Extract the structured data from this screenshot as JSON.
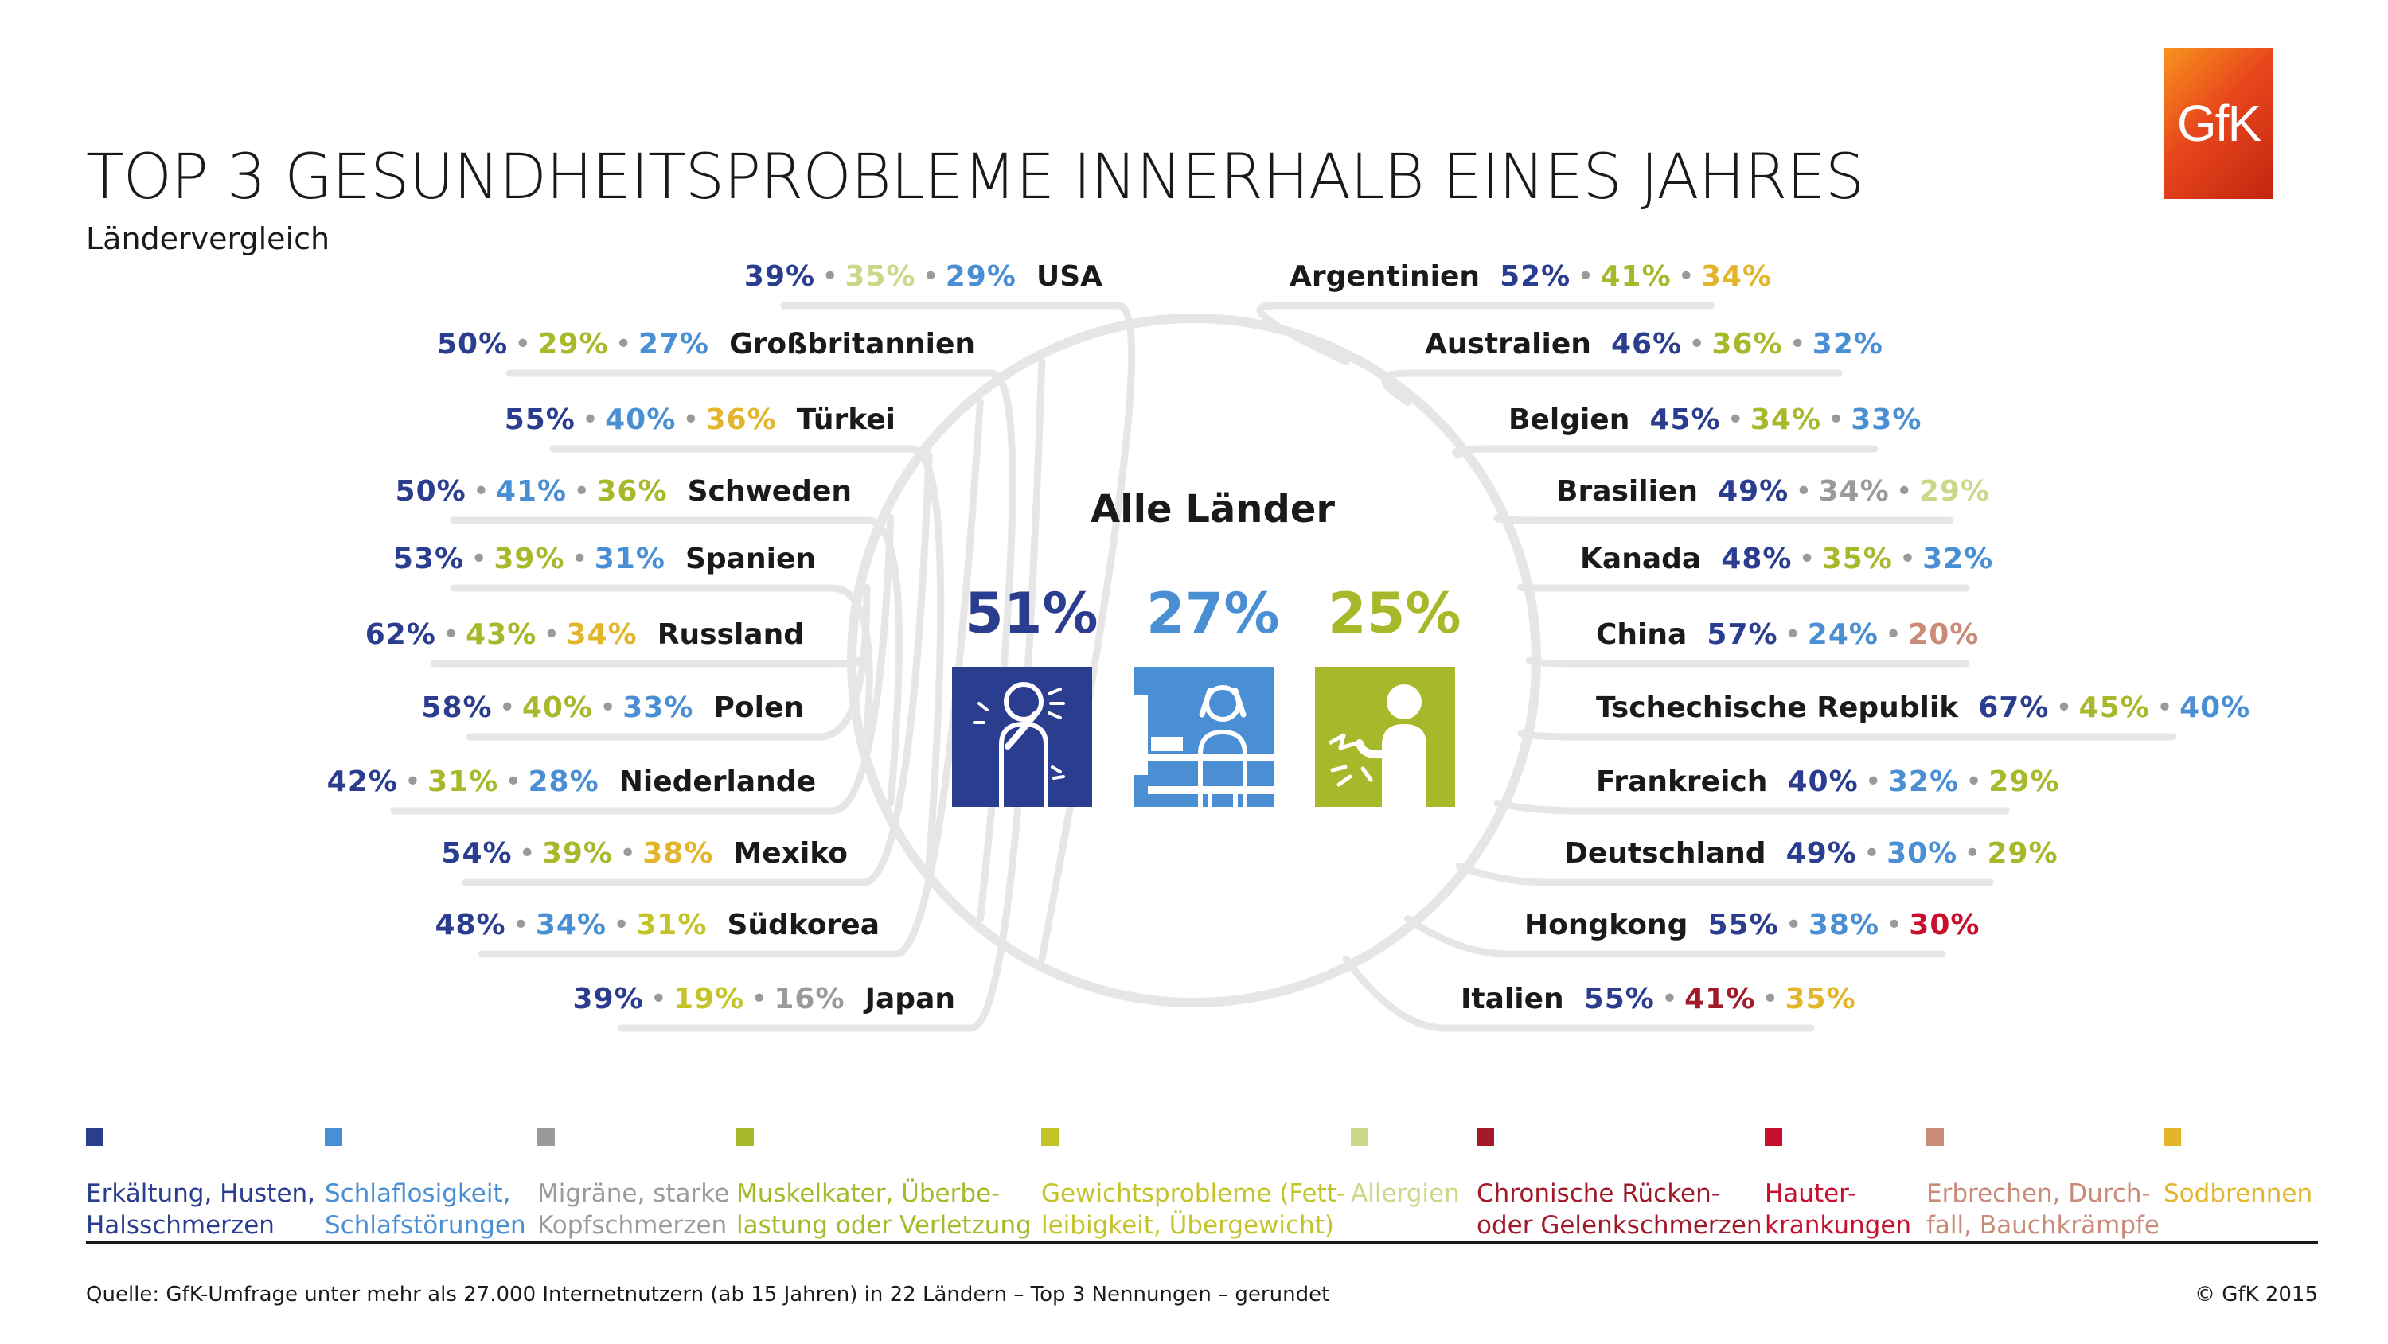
{
  "header": {
    "title": "TOP 3 GESUNDHEITSPROBLEME INNERHALB EINES JAHRES",
    "subtitle": "Ländervergleich",
    "logo_text": "GfK"
  },
  "center": {
    "label": "Alle Länder",
    "items": [
      {
        "value": "51%",
        "color": "#2a3d8f",
        "icon": "cough-cold-icon"
      },
      {
        "value": "27%",
        "color": "#4a8fd4",
        "icon": "insomnia-icon"
      },
      {
        "value": "25%",
        "color": "#a7b82a",
        "icon": "muscle-pain-icon"
      }
    ]
  },
  "colors": {
    "erkaeltung": "#2a3d8f",
    "schlaf": "#4a8fd4",
    "migraene": "#9a9a9a",
    "muskel": "#a7b82a",
    "gewicht": "#c4c42a",
    "allergien": "#c9d88a",
    "ruecken": "#a11a2a",
    "haut": "#c8102e",
    "erbrechen": "#c98a78",
    "sodbrennen": "#e3b52a",
    "arc": "#e6e6e6"
  },
  "chart_data": {
    "type": "table",
    "title": "TOP 3 GESUNDHEITSPROBLEME INNERHALB EINES JAHRES",
    "subtitle": "Ländervergleich",
    "overall": {
      "label": "Alle Länder",
      "values": [
        {
          "category": "erkaeltung",
          "value": 51
        },
        {
          "category": "schlaf",
          "value": 27
        },
        {
          "category": "muskel",
          "value": 25
        }
      ]
    },
    "countries": [
      {
        "side": "left",
        "name": "USA",
        "values": [
          {
            "v": "39%",
            "c": "erkaeltung"
          },
          {
            "v": "35%",
            "c": "allergien"
          },
          {
            "v": "29%",
            "c": "schlaf"
          }
        ]
      },
      {
        "side": "left",
        "name": "Großbritannien",
        "values": [
          {
            "v": "50%",
            "c": "erkaeltung"
          },
          {
            "v": "29%",
            "c": "muskel"
          },
          {
            "v": "27%",
            "c": "schlaf"
          }
        ]
      },
      {
        "side": "left",
        "name": "Türkei",
        "values": [
          {
            "v": "55%",
            "c": "erkaeltung"
          },
          {
            "v": "40%",
            "c": "schlaf"
          },
          {
            "v": "36%",
            "c": "sodbrennen"
          }
        ]
      },
      {
        "side": "left",
        "name": "Schweden",
        "values": [
          {
            "v": "50%",
            "c": "erkaeltung"
          },
          {
            "v": "41%",
            "c": "schlaf"
          },
          {
            "v": "36%",
            "c": "muskel"
          }
        ]
      },
      {
        "side": "left",
        "name": "Spanien",
        "values": [
          {
            "v": "53%",
            "c": "erkaeltung"
          },
          {
            "v": "39%",
            "c": "muskel"
          },
          {
            "v": "31%",
            "c": "schlaf"
          }
        ]
      },
      {
        "side": "left",
        "name": "Russland",
        "values": [
          {
            "v": "62%",
            "c": "erkaeltung"
          },
          {
            "v": "43%",
            "c": "muskel"
          },
          {
            "v": "34%",
            "c": "sodbrennen"
          }
        ]
      },
      {
        "side": "left",
        "name": "Polen",
        "values": [
          {
            "v": "58%",
            "c": "erkaeltung"
          },
          {
            "v": "40%",
            "c": "muskel"
          },
          {
            "v": "33%",
            "c": "schlaf"
          }
        ]
      },
      {
        "side": "left",
        "name": "Niederlande",
        "values": [
          {
            "v": "42%",
            "c": "erkaeltung"
          },
          {
            "v": "31%",
            "c": "muskel"
          },
          {
            "v": "28%",
            "c": "schlaf"
          }
        ]
      },
      {
        "side": "left",
        "name": "Mexiko",
        "values": [
          {
            "v": "54%",
            "c": "erkaeltung"
          },
          {
            "v": "39%",
            "c": "muskel"
          },
          {
            "v": "38%",
            "c": "sodbrennen"
          }
        ]
      },
      {
        "side": "left",
        "name": "Südkorea",
        "values": [
          {
            "v": "48%",
            "c": "erkaeltung"
          },
          {
            "v": "34%",
            "c": "schlaf"
          },
          {
            "v": "31%",
            "c": "gewicht"
          }
        ]
      },
      {
        "side": "left",
        "name": "Japan",
        "values": [
          {
            "v": "39%",
            "c": "erkaeltung"
          },
          {
            "v": "19%",
            "c": "gewicht"
          },
          {
            "v": "16%",
            "c": "migraene"
          }
        ]
      },
      {
        "side": "right",
        "name": "Argentinien",
        "values": [
          {
            "v": "52%",
            "c": "erkaeltung"
          },
          {
            "v": "41%",
            "c": "muskel"
          },
          {
            "v": "34%",
            "c": "sodbrennen"
          }
        ]
      },
      {
        "side": "right",
        "name": "Australien",
        "values": [
          {
            "v": "46%",
            "c": "erkaeltung"
          },
          {
            "v": "36%",
            "c": "muskel"
          },
          {
            "v": "32%",
            "c": "schlaf"
          }
        ]
      },
      {
        "side": "right",
        "name": "Belgien",
        "values": [
          {
            "v": "45%",
            "c": "erkaeltung"
          },
          {
            "v": "34%",
            "c": "muskel"
          },
          {
            "v": "33%",
            "c": "schlaf"
          }
        ]
      },
      {
        "side": "right",
        "name": "Brasilien",
        "values": [
          {
            "v": "49%",
            "c": "erkaeltung"
          },
          {
            "v": "34%",
            "c": "migraene"
          },
          {
            "v": "29%",
            "c": "allergien"
          }
        ]
      },
      {
        "side": "right",
        "name": "Kanada",
        "values": [
          {
            "v": "48%",
            "c": "erkaeltung"
          },
          {
            "v": "35%",
            "c": "muskel"
          },
          {
            "v": "32%",
            "c": "schlaf"
          }
        ]
      },
      {
        "side": "right",
        "name": "China",
        "values": [
          {
            "v": "57%",
            "c": "erkaeltung"
          },
          {
            "v": "24%",
            "c": "schlaf"
          },
          {
            "v": "20%",
            "c": "erbrechen"
          }
        ]
      },
      {
        "side": "right",
        "name": "Tschechische Republik",
        "values": [
          {
            "v": "67%",
            "c": "erkaeltung"
          },
          {
            "v": "45%",
            "c": "muskel"
          },
          {
            "v": "40%",
            "c": "schlaf"
          }
        ]
      },
      {
        "side": "right",
        "name": "Frankreich",
        "values": [
          {
            "v": "40%",
            "c": "erkaeltung"
          },
          {
            "v": "32%",
            "c": "schlaf"
          },
          {
            "v": "29%",
            "c": "muskel"
          }
        ]
      },
      {
        "side": "right",
        "name": "Deutschland",
        "values": [
          {
            "v": "49%",
            "c": "erkaeltung"
          },
          {
            "v": "30%",
            "c": "schlaf"
          },
          {
            "v": "29%",
            "c": "muskel"
          }
        ]
      },
      {
        "side": "right",
        "name": "Hongkong",
        "values": [
          {
            "v": "55%",
            "c": "erkaeltung"
          },
          {
            "v": "38%",
            "c": "schlaf"
          },
          {
            "v": "30%",
            "c": "haut"
          }
        ]
      },
      {
        "side": "right",
        "name": "Italien",
        "values": [
          {
            "v": "55%",
            "c": "erkaeltung"
          },
          {
            "v": "41%",
            "c": "ruecken"
          },
          {
            "v": "35%",
            "c": "sodbrennen"
          }
        ]
      }
    ]
  },
  "legend": [
    {
      "key": "erkaeltung",
      "text": "Erkältung, Husten,\nHalsschmerzen"
    },
    {
      "key": "schlaf",
      "text": "Schlaflosigkeit,\nSchlafstörungen"
    },
    {
      "key": "migraene",
      "text": "Migräne, starke\nKopfschmerzen"
    },
    {
      "key": "muskel",
      "text": "Muskelkater, Überbe-\nlastung oder Verletzung"
    },
    {
      "key": "gewicht",
      "text": "Gewichtsprobleme (Fett-\nleibigkeit, Übergewicht)"
    },
    {
      "key": "allergien",
      "text": "Allergien"
    },
    {
      "key": "ruecken",
      "text": "Chronische Rücken-\noder Gelenkschmerzen"
    },
    {
      "key": "haut",
      "text": "Hauter-\nkrankungen"
    },
    {
      "key": "erbrechen",
      "text": "Erbrechen, Durch-\nfall, Bauchkrämpfe"
    },
    {
      "key": "sodbrennen",
      "text": "Sodbrennen"
    }
  ],
  "footer": {
    "source": "Quelle: GfK-Umfrage unter mehr als 27.000 Internetnutzern (ab 15 Jahren) in 22 Ländern – Top 3 Nennungen – gerundet",
    "copyright": "© GfK 2015"
  }
}
